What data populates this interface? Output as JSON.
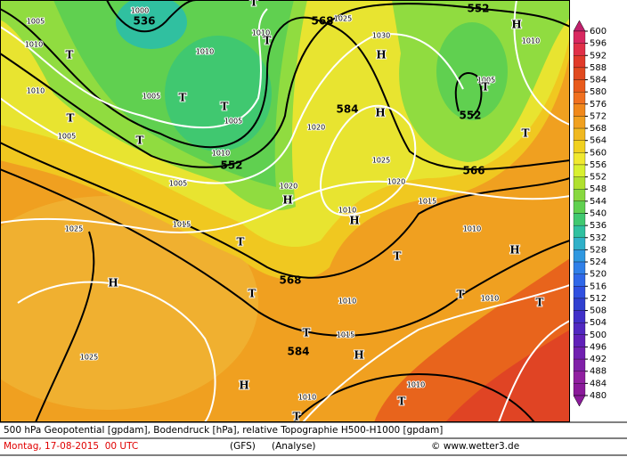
{
  "map": {
    "height_labels": [
      "536",
      "568",
      "552",
      "584",
      "552",
      "552",
      "566",
      "568",
      "584"
    ],
    "isobar_labels": [
      "1000",
      "1005",
      "1010",
      "1010",
      "1025",
      "1030",
      "1010",
      "1005",
      "1005",
      "1010",
      "1005",
      "1020",
      "1010",
      "1025",
      "1020",
      "1005",
      "1020",
      "1015",
      "1010",
      "1015",
      "1025",
      "1010",
      "1010",
      "1010",
      "1015",
      "1025",
      "1010",
      "1010",
      "1005",
      "1010"
    ],
    "pressure_centers": [
      "T",
      "T",
      "T",
      "H",
      "H",
      "T",
      "T",
      "T",
      "H",
      "T",
      "T",
      "T",
      "H",
      "H",
      "T",
      "T",
      "H",
      "H",
      "T",
      "T",
      "T",
      "T",
      "H",
      "H",
      "T",
      "T"
    ],
    "colorbar": {
      "ticks": [
        600,
        596,
        592,
        588,
        584,
        580,
        576,
        572,
        568,
        564,
        560,
        556,
        552,
        548,
        544,
        540,
        536,
        532,
        528,
        524,
        520,
        516,
        512,
        508,
        504,
        500,
        496,
        492,
        488,
        484,
        480
      ],
      "colors": [
        "#c0206c",
        "#d82860",
        "#e03048",
        "#e03a2a",
        "#e04a20",
        "#e85a1c",
        "#f07020",
        "#f0881c",
        "#f0a020",
        "#f0b820",
        "#f0d020",
        "#f0e830",
        "#d8f030",
        "#b0e030",
        "#88d840",
        "#60d050",
        "#40c870",
        "#30c0a0",
        "#30b0c8",
        "#3098e0",
        "#3080e8",
        "#3068e8",
        "#3050e0",
        "#3040d0",
        "#4030c8",
        "#5028c0",
        "#6020b8",
        "#7020b0",
        "#8020a8",
        "#9020a0",
        "#8a1a9a"
      ]
    },
    "footer": {
      "description": "500 hPa Geopotential [gpdam], Bodendruck [hPa], relative Topographie H500-H1000 [gpdam]",
      "date": "Montag, 17-08-2015  00 UTC",
      "model": "(GFS)",
      "run": "(Analyse)",
      "credit": "© www.wetter3.de"
    }
  }
}
